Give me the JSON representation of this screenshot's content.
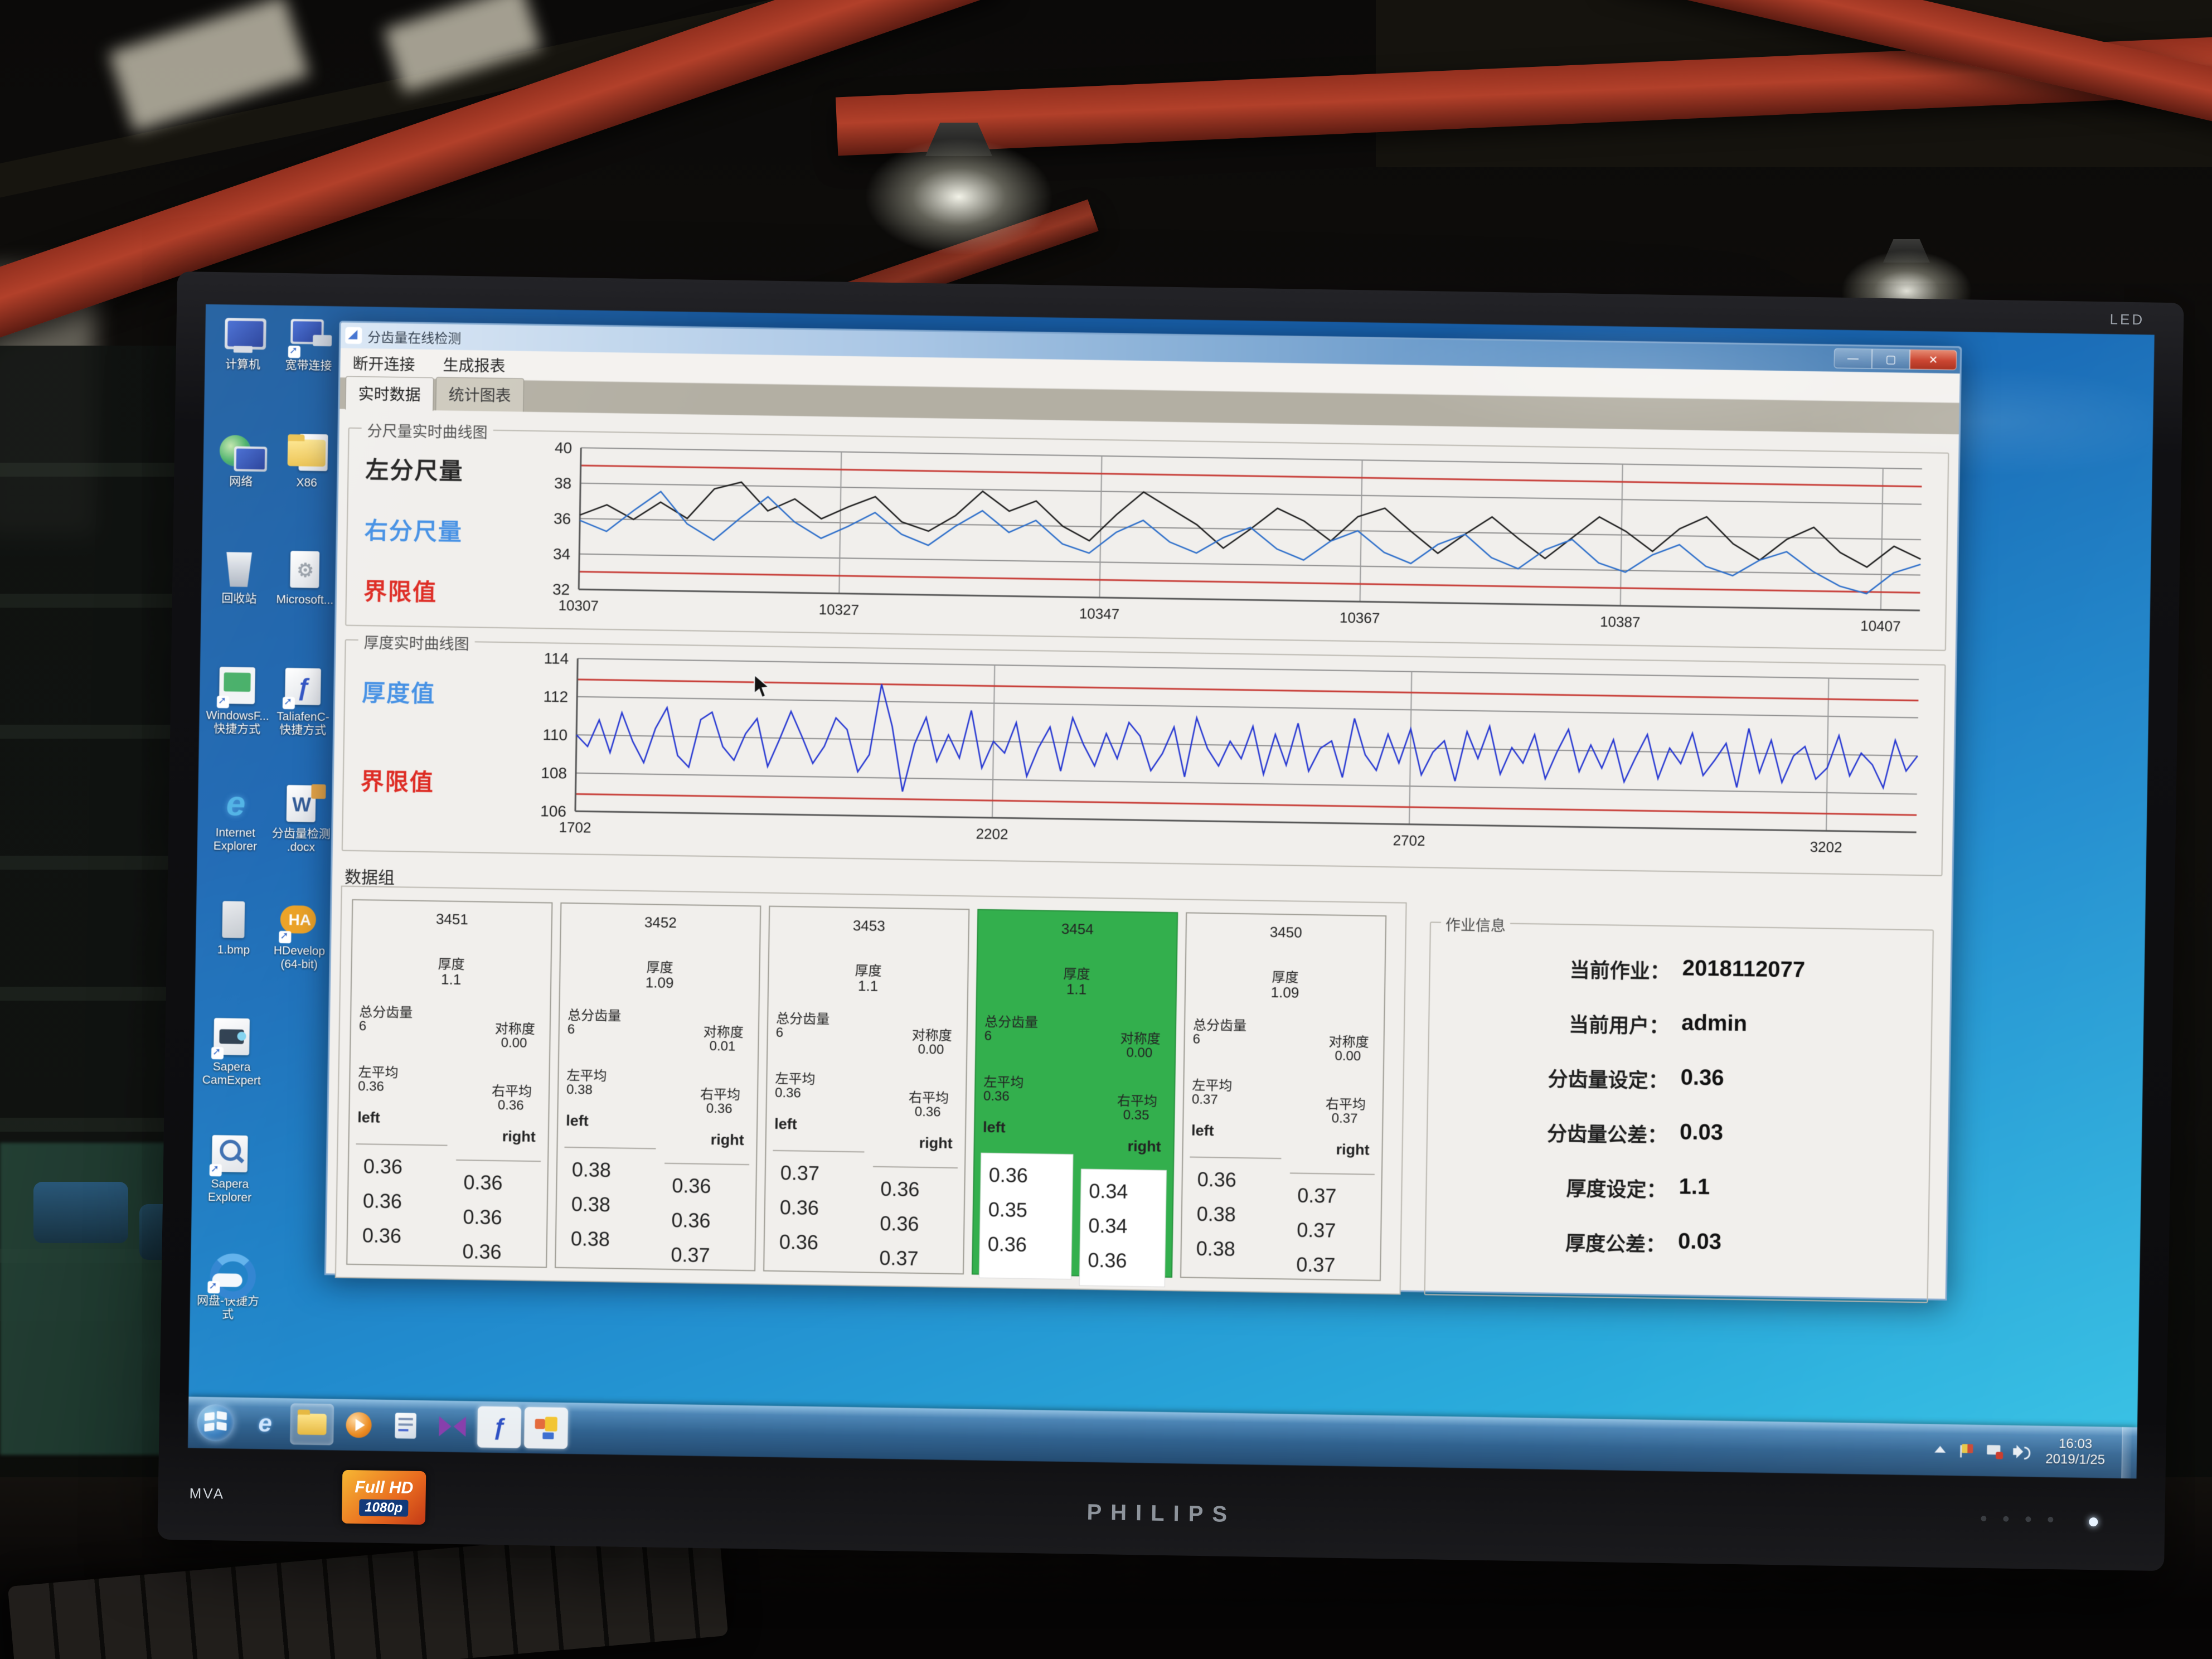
{
  "scene": {
    "brand": "PHILIPS",
    "panel_type": "MVA",
    "bezel_led": "LED",
    "sticker_top": "Full HD",
    "sticker_bottom": "1080p"
  },
  "desktop": {
    "icons_col1": [
      {
        "label": "计算机",
        "glyph": "computer"
      },
      {
        "label": "网络",
        "glyph": "network"
      },
      {
        "label": "回收站",
        "glyph": "recycle"
      },
      {
        "label": "WindowsF...\n快捷方式",
        "glyph": "winf"
      },
      {
        "label": "Internet\nExplorer",
        "glyph": "ie"
      },
      {
        "label": "1.bmp",
        "glyph": "bmp"
      },
      {
        "label": "Sapera\nCamExpert",
        "glyph": "camexpert"
      },
      {
        "label": "Sapera\nExplorer",
        "glyph": "saperaexp"
      },
      {
        "label": "网盘-快捷方式",
        "glyph": "cloud"
      }
    ],
    "icons_col2": [
      {
        "label": "宽带连接",
        "glyph": "devices"
      },
      {
        "label": "X86",
        "glyph": "folder"
      },
      {
        "label": "Microsoft...",
        "glyph": "msdoc"
      },
      {
        "label": "TaliafenC-\n快捷方式",
        "glyph": "taliafen"
      },
      {
        "label": "分齿量检测\n.docx",
        "glyph": "word"
      },
      {
        "label": "HDevelop\n(64-bit)",
        "glyph": "hdevelop"
      }
    ]
  },
  "taskbar": {
    "buttons": [
      {
        "kind": "ie",
        "state": "normal"
      },
      {
        "kind": "explorer",
        "state": "open"
      },
      {
        "kind": "wmp",
        "state": "normal"
      },
      {
        "kind": "notepad",
        "state": "normal"
      },
      {
        "kind": "visual-studio",
        "state": "normal"
      },
      {
        "kind": "measure-app",
        "state": "active"
      },
      {
        "kind": "report-app",
        "state": "active"
      }
    ],
    "tray_icons": [
      "tray-arrow",
      "flag",
      "network-status",
      "volume"
    ],
    "time": "16:03",
    "date": "2019/1/25"
  },
  "win": {
    "title": "分齿量在线检测",
    "controls": {
      "min": "—",
      "max": "▢",
      "close": "✕"
    },
    "menu": [
      "断开连接",
      "生成报表"
    ],
    "tabs": [
      {
        "label": "实时数据",
        "active": true
      },
      {
        "label": "统计图表",
        "active": false
      }
    ],
    "sections": {
      "data_group": "数据组"
    },
    "col_labels": {
      "thickness": "厚度",
      "total": "总分齿量",
      "sym": "对称度",
      "lavg": "左平均",
      "ravg": "右平均",
      "left": "left",
      "right": "right"
    },
    "columns": [
      {
        "id": "3451",
        "thickness": "1.1",
        "total": "6",
        "sym": "0.00",
        "lavg": "0.36",
        "ravg": "0.36",
        "left": [
          "0.36",
          "0.36",
          "0.36"
        ],
        "right": [
          "0.36",
          "0.36",
          "0.36"
        ],
        "highlight": false
      },
      {
        "id": "3452",
        "thickness": "1.09",
        "total": "6",
        "sym": "0.01",
        "lavg": "0.38",
        "ravg": "0.36",
        "left": [
          "0.38",
          "0.38",
          "0.38"
        ],
        "right": [
          "0.36",
          "0.36",
          "0.37"
        ],
        "highlight": false
      },
      {
        "id": "3453",
        "thickness": "1.1",
        "total": "6",
        "sym": "0.00",
        "lavg": "0.36",
        "ravg": "0.36",
        "left": [
          "0.37",
          "0.36",
          "0.36"
        ],
        "right": [
          "0.36",
          "0.36",
          "0.37"
        ],
        "highlight": false
      },
      {
        "id": "3454",
        "thickness": "1.1",
        "total": "6",
        "sym": "0.00",
        "lavg": "0.36",
        "ravg": "0.35",
        "left": [
          "0.36",
          "0.35",
          "0.36"
        ],
        "right": [
          "0.34",
          "0.34",
          "0.36"
        ],
        "highlight": true
      },
      {
        "id": "3450",
        "thickness": "1.09",
        "total": "6",
        "sym": "0.00",
        "lavg": "0.37",
        "ravg": "0.37",
        "left": [
          "0.36",
          "0.38",
          "0.38"
        ],
        "right": [
          "0.37",
          "0.37",
          "0.37"
        ],
        "highlight": false
      }
    ],
    "job": {
      "title": "作业信息",
      "rows": [
        {
          "label": "当前作业：",
          "value": "2018112077"
        },
        {
          "label": "当前用户：",
          "value": "admin"
        },
        {
          "label": "分齿量设定：",
          "value": "0.36"
        },
        {
          "label": "分齿量公差：",
          "value": "0.03"
        },
        {
          "label": "厚度设定：",
          "value": "1.1"
        },
        {
          "label": "厚度公差：",
          "value": "0.03"
        }
      ]
    }
  },
  "chart_data": [
    {
      "type": "line",
      "title": "分尺量实时曲线图",
      "legend": [
        {
          "label": "左分尺量",
          "color": "#1e1e1e"
        },
        {
          "label": "右分尺量",
          "color": "#3f8fe8"
        },
        {
          "label": "界限值",
          "color": "#e3251d"
        }
      ],
      "xlim": [
        10307,
        10410
      ],
      "x_ticks": [
        10307,
        10327,
        10347,
        10367,
        10387,
        10407
      ],
      "ylim": [
        32,
        40
      ],
      "y_ticks": [
        40,
        38,
        36,
        34,
        32
      ],
      "limits": [
        39,
        33
      ],
      "limit_color": "#cc3b35",
      "grid": true,
      "legend_position": "left",
      "series": [
        {
          "name": "左分尺量",
          "color": "#1e1e1e",
          "values": [
            36.2,
            36.8,
            36.0,
            37.0,
            36.1,
            37.8,
            38.2,
            36.6,
            37.3,
            36.2,
            36.9,
            37.5,
            36.1,
            35.6,
            36.5,
            37.9,
            36.8,
            37.4,
            36.0,
            35.2,
            36.7,
            38.0,
            37.1,
            36.2,
            34.9,
            36.0,
            37.2,
            36.5,
            35.4,
            36.8,
            37.3,
            36.0,
            34.8,
            35.9,
            36.9,
            35.7,
            34.6,
            35.8,
            37.0,
            36.2,
            35.1,
            36.4,
            37.1,
            35.6,
            34.7,
            35.9,
            36.6,
            35.2,
            34.4,
            35.6,
            34.9
          ]
        },
        {
          "name": "右分尺量",
          "color": "#2b6fce",
          "values": [
            35.9,
            35.3,
            36.5,
            37.6,
            35.8,
            34.9,
            36.2,
            37.4,
            36.0,
            35.1,
            35.8,
            36.6,
            35.4,
            34.8,
            35.9,
            36.8,
            35.6,
            36.3,
            35.0,
            34.5,
            35.7,
            36.4,
            35.2,
            34.6,
            35.5,
            36.1,
            34.9,
            34.3,
            35.4,
            36.0,
            34.8,
            34.2,
            35.3,
            35.9,
            34.6,
            34.0,
            35.1,
            35.7,
            34.4,
            33.9,
            34.9,
            35.5,
            34.3,
            33.8,
            34.7,
            35.2,
            34.1,
            33.3,
            32.9,
            34.1,
            34.6
          ]
        }
      ]
    },
    {
      "type": "line",
      "title": "厚度实时曲线图",
      "legend": [
        {
          "label": "厚度值",
          "color": "#3f8fe8"
        },
        {
          "label": "界限值",
          "color": "#e3251d"
        }
      ],
      "xlim": [
        1702,
        3310
      ],
      "x_ticks": [
        1702,
        2202,
        2702,
        3202
      ],
      "ylim": [
        106,
        114
      ],
      "y_ticks": [
        114,
        112,
        110,
        108,
        106
      ],
      "limits": [
        112.9,
        106.9
      ],
      "limit_color": "#cc3b35",
      "grid": true,
      "legend_position": "left",
      "series": [
        {
          "name": "厚度值",
          "color": "#2638d8",
          "values": [
            110.0,
            109.4,
            110.8,
            109.1,
            111.2,
            109.7,
            108.6,
            110.4,
            111.5,
            109.0,
            108.4,
            110.9,
            111.3,
            109.5,
            108.8,
            110.2,
            111.0,
            108.5,
            109.9,
            111.4,
            110.1,
            108.7,
            109.6,
            111.1,
            110.5,
            108.3,
            109.2,
            112.9,
            110.7,
            107.3,
            109.8,
            111.2,
            108.9,
            110.3,
            109.1,
            111.6,
            108.6,
            110.0,
            109.4,
            111.0,
            108.2,
            109.7,
            110.8,
            108.5,
            111.3,
            109.9,
            108.8,
            110.5,
            109.2,
            111.1,
            110.4,
            108.6,
            109.5,
            110.9,
            108.3,
            111.4,
            109.8,
            108.9,
            110.2,
            109.3,
            111.0,
            108.5,
            110.6,
            109.0,
            111.2,
            108.7,
            109.9,
            110.3,
            108.4,
            111.5,
            109.6,
            108.8,
            110.7,
            109.2,
            111.0,
            108.6,
            109.8,
            110.4,
            108.3,
            110.9,
            109.5,
            111.2,
            108.7,
            110.1,
            109.3,
            110.8,
            108.5,
            109.9,
            111.1,
            108.9,
            110.3,
            109.1,
            110.6,
            108.4,
            109.7,
            110.9,
            108.6,
            110.2,
            109.4,
            111.0,
            108.8,
            109.6,
            110.5,
            108.2,
            111.3,
            109.0,
            110.7,
            108.5,
            109.9,
            110.4,
            108.7,
            109.3,
            111.0,
            108.9,
            110.1,
            109.5,
            108.3,
            110.8,
            109.2,
            110.0
          ]
        }
      ]
    }
  ]
}
